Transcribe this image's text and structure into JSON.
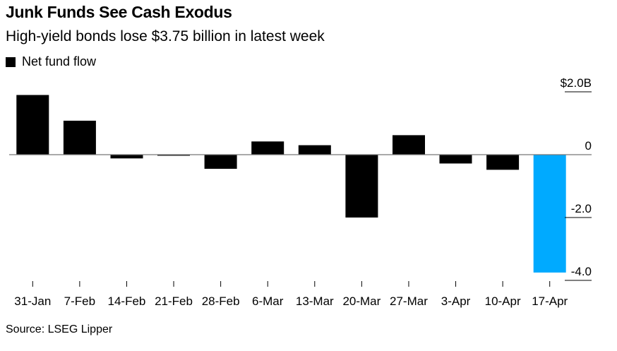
{
  "title": "Junk Funds See Cash Exodus",
  "subtitle": "High-yield bonds lose $3.75 billion in latest week",
  "legend_label": "Net fund flow",
  "source": "Source: LSEG Lipper",
  "colors": {
    "bar": "#000000",
    "highlight": "#00aaff",
    "axis": "#555555"
  },
  "chart_data": {
    "type": "bar",
    "categories": [
      "31-Jan",
      "7-Feb",
      "14-Feb",
      "21-Feb",
      "28-Feb",
      "6-Mar",
      "13-Mar",
      "20-Mar",
      "27-Mar",
      "3-Apr",
      "10-Apr",
      "17-Apr"
    ],
    "series": [
      {
        "name": "Net fund flow",
        "values": [
          1.9,
          1.08,
          -0.12,
          -0.03,
          -0.45,
          0.42,
          0.3,
          -2.0,
          0.62,
          -0.28,
          -0.48,
          -3.75
        ]
      }
    ],
    "highlight_index": 11,
    "y_ticks": [
      2.0,
      0,
      -2.0,
      -4.0
    ],
    "y_tick_labels": [
      "$2.0B",
      "0",
      "-2.0",
      "-4.0"
    ],
    "ylim": [
      -4.0,
      2.0
    ],
    "y_axis_position": "right",
    "xlabel": "",
    "ylabel": "",
    "grid": false
  }
}
